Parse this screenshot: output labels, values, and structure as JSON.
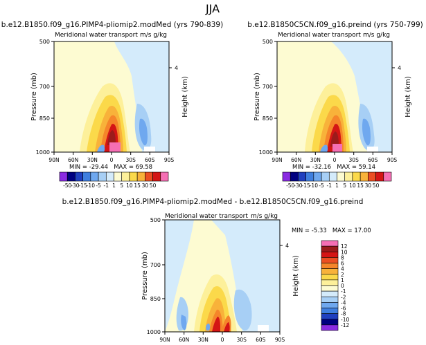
{
  "page_title": "JJA",
  "colors": {
    "purple": "#8a2be2",
    "navy": "#000080",
    "blue": "#1f3fbf",
    "mid_blue": "#3f7fdf",
    "light_blue": "#6fa8ef",
    "sky": "#a7cff5",
    "pale_blue": "#d4ebfb",
    "pale_yellow": "#fdfbd2",
    "light_yellow": "#fdf09a",
    "yellow": "#fbd94a",
    "gold": "#f8b23a",
    "orange": "#f5852a",
    "red_orange": "#eb4e22",
    "red": "#d41515",
    "dark_red": "#9b1b1b",
    "brown": "#7a2a2a",
    "pink": "#f56fb4"
  },
  "chart_data": [
    {
      "type": "contour",
      "title": "b.e12.B1850.f09_g16.PIMP4-pliomip2.modMed (yrs 790-839)",
      "subtitle_left": "Meridional water transport",
      "subtitle_right": "m/s g/kg",
      "xlabel": "",
      "ylabel": "Pressure (mb)",
      "y2label": "Height (km)",
      "x_ticks": [
        "90N",
        "60N",
        "30N",
        "0",
        "30S",
        "60S",
        "90S"
      ],
      "y_ticks": [
        "500",
        "700",
        "850",
        "1000"
      ],
      "y2_ticks": [
        "4"
      ],
      "xlim": [
        90,
        -90
      ],
      "ylim": [
        1000,
        500
      ],
      "stats_text": "MIN = -29.44   MAX = 69.58",
      "min": -29.44,
      "max": 69.58
    },
    {
      "type": "contour",
      "title": "b.e12.B1850C5CN.f09_g16.preind (yrs 750-799)",
      "subtitle_left": "Meridional water transport",
      "subtitle_right": "m/s g/kg",
      "xlabel": "",
      "ylabel": "Pressure (mb)",
      "y2label": "Height (km)",
      "x_ticks": [
        "90N",
        "60N",
        "30N",
        "0",
        "30S",
        "60S",
        "90S"
      ],
      "y_ticks": [
        "500",
        "700",
        "850",
        "1000"
      ],
      "y2_ticks": [
        "4"
      ],
      "xlim": [
        90,
        -90
      ],
      "ylim": [
        1000,
        500
      ],
      "stats_text": "MIN = -32.16   MAX = 59.14",
      "min": -32.16,
      "max": 59.14
    },
    {
      "type": "contour",
      "title": "b.e12.B1850.f09_g16.PIMP4-pliomip2.modMed - b.e12.B1850C5CN.f09_g16.preind",
      "subtitle_left": "Meridional water transport",
      "subtitle_right": "m/s g/kg",
      "xlabel": "",
      "ylabel": "Pressure (mb)",
      "y2label": "Height (km)",
      "x_ticks": [
        "90N",
        "60N",
        "30N",
        "0",
        "30S",
        "60S",
        "90S"
      ],
      "y_ticks": [
        "500",
        "700",
        "850",
        "1000"
      ],
      "y2_ticks": [
        "4"
      ],
      "xlim": [
        90,
        -90
      ],
      "ylim": [
        1000,
        500
      ],
      "stats_text": "MIN = -5.33   MAX = 17.00",
      "min": -5.33,
      "max": 17.0
    }
  ],
  "colorbar_top": {
    "labels": [
      "-50",
      "-30",
      "-15",
      "-10",
      "-5",
      "-1",
      "1",
      "5",
      "10",
      "15",
      "30",
      "50"
    ],
    "colors": [
      "#8a2be2",
      "#000080",
      "#1f3fbf",
      "#3f7fdf",
      "#6fa8ef",
      "#a7cff5",
      "#d4ebfb",
      "#fdfbd2",
      "#fdf09a",
      "#fbd94a",
      "#f8b23a",
      "#eb4e22",
      "#d41515",
      "#f56fb4"
    ]
  },
  "colorbar_diff": {
    "labels": [
      "12",
      "10",
      "8",
      "6",
      "4",
      "2",
      "1",
      "0",
      "-1",
      "-2",
      "-4",
      "-6",
      "-8",
      "-10",
      "-12"
    ],
    "colors": [
      "#f56fb4",
      "#9b1b1b",
      "#d41515",
      "#eb4e22",
      "#f5852a",
      "#f8b23a",
      "#fbd94a",
      "#fdf09a",
      "#fdfbd2",
      "#d4ebfb",
      "#a7cff5",
      "#6fa8ef",
      "#3f7fdf",
      "#1f3fbf",
      "#000080",
      "#8a2be2"
    ]
  }
}
